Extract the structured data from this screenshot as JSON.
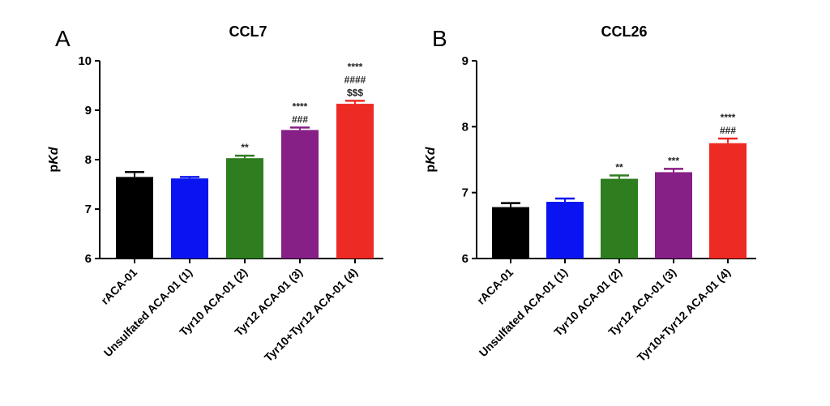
{
  "chart_data": [
    {
      "panel": "A",
      "type": "bar",
      "title": "CCL7",
      "ylabel": "pKd",
      "ylabel_plain": "p",
      "ylabel_italic": "Kd",
      "ylim": [
        6,
        10
      ],
      "yticks": [
        "6",
        "7",
        "8",
        "9",
        "10"
      ],
      "categories": [
        "rACA-01",
        "Unsulfated ACA-01 (1)",
        "Tyr10 ACA-01 (2)",
        "Tyr12 ACA-01 (3)",
        "Tyr10+Tyr12 ACA-01 (4)"
      ],
      "values": [
        7.65,
        7.62,
        8.03,
        8.6,
        9.13
      ],
      "errors": [
        0.1,
        0.03,
        0.05,
        0.05,
        0.06
      ],
      "colors": [
        "#000000",
        "#0a14f0",
        "#2e7d1f",
        "#861f86",
        "#ee2a24"
      ],
      "annotations": [
        [],
        [],
        [
          "**"
        ],
        [
          "****",
          "###"
        ],
        [
          "****",
          "####",
          "$$$"
        ]
      ]
    },
    {
      "panel": "B",
      "type": "bar",
      "title": "CCL26",
      "ylabel": "pKd",
      "ylabel_plain": "p",
      "ylabel_italic": "Kd",
      "ylim": [
        6,
        9
      ],
      "yticks": [
        "6",
        "7",
        "8",
        "9"
      ],
      "categories": [
        "rACA-01",
        "Unsulfated ACA-01 (1)",
        "Tyr10 ACA-01 (2)",
        "Tyr12 ACA-01 (3)",
        "Tyr10+Tyr12 ACA-01 (4)"
      ],
      "values": [
        6.78,
        6.86,
        7.21,
        7.31,
        7.75
      ],
      "errors": [
        0.06,
        0.05,
        0.05,
        0.05,
        0.07
      ],
      "colors": [
        "#000000",
        "#0a14f0",
        "#2e7d1f",
        "#861f86",
        "#ee2a24"
      ],
      "annotations": [
        [],
        [],
        [
          "**"
        ],
        [
          "***"
        ],
        [
          "****",
          "###"
        ]
      ]
    }
  ]
}
